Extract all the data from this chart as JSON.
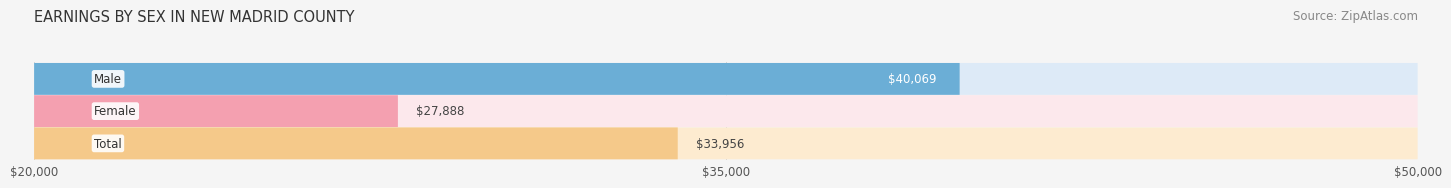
{
  "title": "EARNINGS BY SEX IN NEW MADRID COUNTY",
  "source": "Source: ZipAtlas.com",
  "categories": [
    "Male",
    "Female",
    "Total"
  ],
  "values": [
    40069,
    27888,
    33956
  ],
  "labels": [
    "$40,069",
    "$27,888",
    "$33,956"
  ],
  "bar_colors": [
    "#6baed6",
    "#f4a0b0",
    "#f5c98a"
  ],
  "bar_bg_colors": [
    "#ddeaf7",
    "#fce8ec",
    "#fdebd0"
  ],
  "xmin": 20000,
  "xmax": 50000,
  "xticks": [
    20000,
    35000,
    50000
  ],
  "xtick_labels": [
    "$20,000",
    "$35,000",
    "$50,000"
  ],
  "title_fontsize": 10.5,
  "source_fontsize": 8.5,
  "bar_label_fontsize": 8.5,
  "category_fontsize": 8.5,
  "tick_fontsize": 8.5,
  "bar_height": 0.52,
  "background_color": "#f5f5f5"
}
